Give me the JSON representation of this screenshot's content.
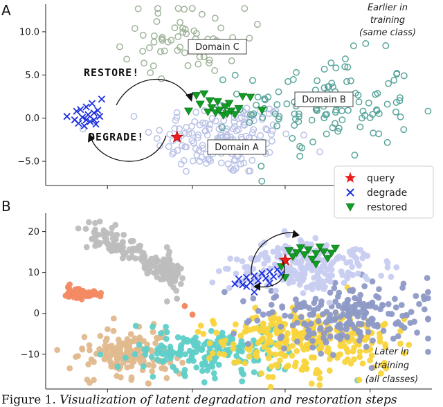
{
  "colors": {
    "domain_a": "#b9c1e6",
    "domain_b": "#58a59b",
    "domain_c": "#9fb49a",
    "gray": "#bdbdbd",
    "salmon": "#f28a63",
    "tan": "#e0b98e",
    "teal": "#5fcfc8",
    "yellow": "#f9d43c",
    "slate": "#8e9ac6",
    "lavender": "#c8cdf1",
    "query": "#ee1c1c",
    "degrade": "#1b2fe0",
    "restored": "#119c24"
  },
  "chart_data": [
    {
      "panel": "A",
      "type": "scatter",
      "ylim": [
        -7.8,
        13.2
      ],
      "xlim": [
        0,
        100
      ],
      "y_ticks": [
        10.0,
        5.0,
        0.0,
        -5.0
      ],
      "y_tick_labels": [
        "10.0",
        "5.0",
        "0.0",
        "−5.0"
      ],
      "x_tick_positions": [
        16,
        38,
        62,
        84
      ],
      "corner_note": [
        "Earlier in",
        "training",
        "(same class)"
      ],
      "domain_labels": [
        "Domain C",
        "Domain B",
        "Domain A"
      ],
      "annotations": [
        "RESTORE!",
        "DEGRADE!"
      ],
      "legend": [
        "query",
        "degrade",
        "restored"
      ],
      "clusters": {
        "domain_a": {
          "center": [
            46,
            -2.3
          ],
          "spread": [
            9,
            2.2
          ],
          "count": 170,
          "marker": "hollow-circle"
        },
        "domain_b": {
          "center": [
            73,
            1.4
          ],
          "spread": [
            11,
            3.0
          ],
          "count": 120,
          "marker": "hollow-circle"
        },
        "domain_c": {
          "center": [
            36,
            9.2
          ],
          "spread": [
            8,
            2.0
          ],
          "count": 60,
          "marker": "hollow-circle"
        }
      },
      "query": [
        [
          34,
          -2.2
        ]
      ],
      "degrade": [
        [
          5.5,
          0.2
        ],
        [
          7.5,
          -0.2
        ],
        [
          8.0,
          0.8
        ],
        [
          8.5,
          -0.6
        ],
        [
          9.0,
          1.0
        ],
        [
          9.5,
          0.1
        ],
        [
          10.0,
          -0.9
        ],
        [
          10.5,
          1.3
        ],
        [
          11.0,
          0.4
        ],
        [
          11.5,
          -0.4
        ],
        [
          12.0,
          1.7
        ],
        [
          12.5,
          0.6
        ],
        [
          13.0,
          -0.7
        ],
        [
          13.5,
          0.9
        ],
        [
          14.0,
          0.2
        ],
        [
          14.5,
          2.2
        ],
        [
          10.5,
          -0.2
        ],
        [
          12.5,
          -0.2
        ]
      ],
      "restored": [
        [
          39,
          2.6
        ],
        [
          40,
          1.6
        ],
        [
          41,
          2.8
        ],
        [
          42,
          0.7
        ],
        [
          42.5,
          2.0
        ],
        [
          43,
          1.2
        ],
        [
          44,
          0.6
        ],
        [
          44.5,
          1.9
        ],
        [
          45,
          0.9
        ],
        [
          46,
          0.3
        ],
        [
          46.5,
          1.3
        ],
        [
          47,
          0.5
        ],
        [
          47.5,
          1.7
        ],
        [
          48,
          0.8
        ],
        [
          49,
          0.4
        ],
        [
          50,
          1.1
        ],
        [
          51,
          2.5
        ],
        [
          53,
          2.4
        ],
        [
          56,
          0.9
        ],
        [
          37,
          0.8
        ]
      ]
    },
    {
      "panel": "B",
      "type": "scatter",
      "ylim": [
        -18.5,
        24.5
      ],
      "xlim": [
        0,
        100
      ],
      "y_ticks": [
        20,
        10,
        0,
        -10
      ],
      "y_tick_labels": [
        "20",
        "10",
        "0",
        "−10"
      ],
      "x_tick_positions": [
        16,
        38,
        62,
        84
      ],
      "corner_note": [
        "Later in",
        "training",
        "(all classes)"
      ],
      "clusters": {
        "gray": {
          "path": [
            [
              9,
              21
            ],
            [
              20,
              16
            ],
            [
              30,
              11
            ],
            [
              34,
              9
            ]
          ],
          "spread": [
            3.5,
            1.8
          ],
          "count": 170
        },
        "salmon": {
          "path": [
            [
              6,
              5
            ],
            [
              14,
              4.6
            ]
          ],
          "spread": [
            2.2,
            0.7
          ],
          "count": 60
        },
        "tan": {
          "center": [
            21,
            -10
          ],
          "spread": [
            6,
            3.0
          ],
          "count": 150
        },
        "teal": {
          "center": [
            43,
            -9.5
          ],
          "spread": [
            11,
            2.8
          ],
          "count": 190
        },
        "yellow": {
          "center": [
            68,
            -6.5
          ],
          "spread": [
            12,
            4.0
          ],
          "count": 280
        },
        "slate": {
          "center": [
            78,
            -0.5
          ],
          "spread": [
            11,
            4.0
          ],
          "count": 220
        },
        "lavender": {
          "center": [
            67,
            11.5
          ],
          "spread": [
            9,
            3.0
          ],
          "count": 230
        }
      },
      "extra_points": [
        [
          36,
          1.8,
          "salmon"
        ],
        [
          38,
          -0.3,
          "salmon"
        ],
        [
          34,
          3.6,
          "gray"
        ]
      ],
      "query": [
        [
          62,
          13
        ]
      ],
      "degrade": [
        [
          49,
          7.2
        ],
        [
          50,
          8.4
        ],
        [
          51,
          7.0
        ],
        [
          52,
          8.8
        ],
        [
          53,
          7.6
        ],
        [
          54,
          9.2
        ],
        [
          55,
          8.0
        ],
        [
          56,
          9.8
        ],
        [
          57,
          8.6
        ],
        [
          58,
          10.2
        ],
        [
          59,
          9.0
        ],
        [
          60,
          10.7
        ],
        [
          61,
          9.6
        ],
        [
          54,
          5.2
        ],
        [
          52,
          6.6
        ],
        [
          58,
          7.4
        ]
      ],
      "restored": [
        [
          63,
          15.3
        ],
        [
          64,
          13.8
        ],
        [
          65,
          14.8
        ],
        [
          66,
          16.0
        ],
        [
          67,
          14.3
        ],
        [
          68,
          15.5
        ],
        [
          69,
          13.2
        ],
        [
          70,
          14.6
        ],
        [
          71,
          16.2
        ],
        [
          72,
          15.0
        ],
        [
          73,
          13.4
        ],
        [
          74,
          14.7
        ],
        [
          75,
          15.9
        ],
        [
          61,
          11.4
        ],
        [
          62,
          8.7
        ],
        [
          70,
          12.0
        ]
      ]
    }
  ],
  "caption": {
    "figure_label": "Figure 1.",
    "title": "Visualization of latent degradation and restoration steps"
  }
}
